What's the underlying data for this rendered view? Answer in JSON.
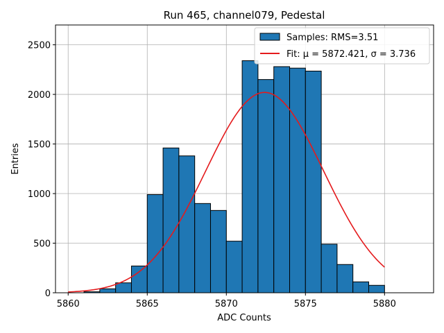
{
  "chart_data": {
    "type": "bar",
    "title": "Run 465, channel079, Pedestal",
    "xlabel": "ADC Counts",
    "ylabel": "Entries",
    "xlim": [
      5859.2,
      5883.1
    ],
    "ylim": [
      0,
      2700
    ],
    "xticks": [
      5860,
      5865,
      5870,
      5875,
      5880
    ],
    "yticks": [
      0,
      500,
      1000,
      1500,
      2000,
      2500
    ],
    "grid": true,
    "legend_position": "top-right",
    "bin_width": 1,
    "bins": [
      {
        "x": 5861,
        "value": 10
      },
      {
        "x": 5862,
        "value": 40
      },
      {
        "x": 5863,
        "value": 100
      },
      {
        "x": 5864,
        "value": 270
      },
      {
        "x": 5865,
        "value": 990
      },
      {
        "x": 5866,
        "value": 1460
      },
      {
        "x": 5867,
        "value": 1380
      },
      {
        "x": 5868,
        "value": 900
      },
      {
        "x": 5869,
        "value": 830
      },
      {
        "x": 5870,
        "value": 520
      },
      {
        "x": 5871,
        "value": 2340
      },
      {
        "x": 5872,
        "value": 2150
      },
      {
        "x": 5873,
        "value": 2280
      },
      {
        "x": 5874,
        "value": 2265
      },
      {
        "x": 5875,
        "value": 2235
      },
      {
        "x": 5876,
        "value": 490
      },
      {
        "x": 5877,
        "value": 285
      },
      {
        "x": 5878,
        "value": 110
      },
      {
        "x": 5879,
        "value": 75
      }
    ],
    "fit": {
      "mu": 5872.421,
      "sigma": 3.736,
      "amplitude": 2020,
      "x_range": [
        5860,
        5880
      ]
    },
    "series": [
      {
        "name": "Samples: RMS=3.51",
        "kind": "histogram",
        "color": "#1f77b4"
      },
      {
        "name": "Fit: μ = 5872.421, σ = 3.736",
        "kind": "line",
        "color": "#e41a1c"
      }
    ]
  }
}
